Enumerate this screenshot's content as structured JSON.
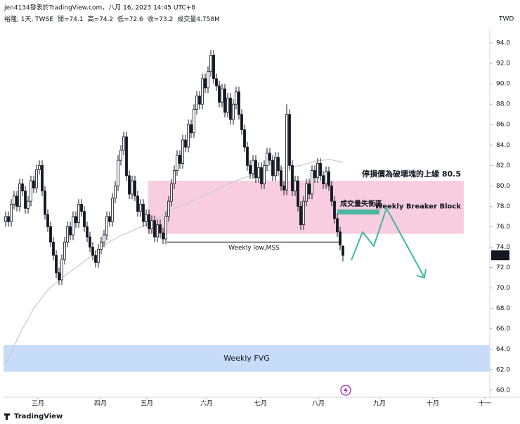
{
  "header": {
    "credit": "jen4134發表於TradingView.com，八月 16, 2023 14:45 UTC+8",
    "symbol": "裕隆, 1天, TWSE",
    "ohlc_labels": [
      "開=",
      "高=",
      "低=",
      "收="
    ],
    "volume": "成交量4.758M",
    "currency": "TWD"
  },
  "footer": {
    "brand": "TradingView"
  },
  "chart_data": {
    "type": "candlestick",
    "up_color": "#ffffff",
    "down_color": "#131722",
    "edge_color": "#131722",
    "ylim": [
      59.3,
      95.45
    ],
    "xlim": [
      -0.75,
      172.25
    ],
    "yticks": [
      {
        "value": 60,
        "label": "60.0"
      },
      {
        "value": 62,
        "label": "62.0"
      },
      {
        "value": 64,
        "label": "64.0"
      },
      {
        "value": 66,
        "label": "66.0"
      },
      {
        "value": 68,
        "label": "68.0"
      },
      {
        "value": 70,
        "label": "70.0"
      },
      {
        "value": 72,
        "label": "72.0"
      },
      {
        "value": 74,
        "label": "74.0"
      },
      {
        "value": 76,
        "label": "76.0"
      },
      {
        "value": 78,
        "label": "78.0"
      },
      {
        "value": 80,
        "label": "80.0"
      },
      {
        "value": 82,
        "label": "82.0"
      },
      {
        "value": 84,
        "label": "84.0"
      },
      {
        "value": 86,
        "label": "86.0"
      },
      {
        "value": 88,
        "label": "88.0"
      },
      {
        "value": 90,
        "label": "90.0"
      },
      {
        "value": 92,
        "label": "92.0"
      },
      {
        "value": 94,
        "label": "94.0"
      }
    ],
    "xticks": [
      {
        "value": 11.5,
        "label": "三月"
      },
      {
        "value": 33.75,
        "label": "四月"
      },
      {
        "value": 50.25,
        "label": "五月"
      },
      {
        "value": 71.5,
        "label": "六月"
      },
      {
        "value": 90.75,
        "label": "七月"
      },
      {
        "value": 111.25,
        "label": "八月"
      },
      {
        "value": 133,
        "label": "九月"
      },
      {
        "value": 152,
        "label": "十月"
      },
      {
        "value": 170.5,
        "label": "十一"
      }
    ],
    "ohlc": [
      [
        76.5,
        77.5,
        76.0,
        77.0
      ],
      [
        77.0,
        77.5,
        76.0,
        76.5
      ],
      [
        76.5,
        78.7,
        76.0,
        78.2
      ],
      [
        78.2,
        79.5,
        77.7,
        79.0
      ],
      [
        79.0,
        79.5,
        77.5,
        78.0
      ],
      [
        78.0,
        80.7,
        77.5,
        80.2
      ],
      [
        80.2,
        80.7,
        79.0,
        79.5
      ],
      [
        79.5,
        80.0,
        77.3,
        77.8
      ],
      [
        77.8,
        79.0,
        77.3,
        78.5
      ],
      [
        78.5,
        81.0,
        78.0,
        80.5
      ],
      [
        80.5,
        81.0,
        79.3,
        79.8
      ],
      [
        79.8,
        82.1,
        79.3,
        81.6
      ],
      [
        81.6,
        82.5,
        81.1,
        82.0
      ],
      [
        82.0,
        82.5,
        79.0,
        79.5
      ],
      [
        79.5,
        80.0,
        76.7,
        77.2
      ],
      [
        77.2,
        77.7,
        75.5,
        76.0
      ],
      [
        76.0,
        76.5,
        74.0,
        74.5
      ],
      [
        74.5,
        75.0,
        72.7,
        73.2
      ],
      [
        73.2,
        73.7,
        71.0,
        71.5
      ],
      [
        71.5,
        72.0,
        70.3,
        70.8
      ],
      [
        70.8,
        73.3,
        70.3,
        72.8
      ],
      [
        72.8,
        75.0,
        72.3,
        74.5
      ],
      [
        74.5,
        76.5,
        74.0,
        76.0
      ],
      [
        76.0,
        76.5,
        74.7,
        75.2
      ],
      [
        75.2,
        77.5,
        74.7,
        77.0
      ],
      [
        77.0,
        77.5,
        75.9,
        76.4
      ],
      [
        76.4,
        78.7,
        75.9,
        78.2
      ],
      [
        78.2,
        78.7,
        77.0,
        77.5
      ],
      [
        77.5,
        78.0,
        75.5,
        76.0
      ],
      [
        76.0,
        76.5,
        74.5,
        75.0
      ],
      [
        75.0,
        75.5,
        73.5,
        74.0
      ],
      [
        74.0,
        74.5,
        72.7,
        73.2
      ],
      [
        73.2,
        73.7,
        72.0,
        72.5
      ],
      [
        72.5,
        74.3,
        72.0,
        73.8
      ],
      [
        73.8,
        75.0,
        73.3,
        74.5
      ],
      [
        74.5,
        75.7,
        74.0,
        75.2
      ],
      [
        75.2,
        77.5,
        74.7,
        77.0
      ],
      [
        77.0,
        77.5,
        76.0,
        76.5
      ],
      [
        76.5,
        79.3,
        76.0,
        78.8
      ],
      [
        78.8,
        80.5,
        78.3,
        80.0
      ],
      [
        80.0,
        83.0,
        79.5,
        82.5
      ],
      [
        82.5,
        84.0,
        82.0,
        83.5
      ],
      [
        83.5,
        85.3,
        83.0,
        84.8
      ],
      [
        84.8,
        85.3,
        80.5,
        81.0
      ],
      [
        81.0,
        81.5,
        78.7,
        79.2
      ],
      [
        79.2,
        81.0,
        78.7,
        80.5
      ],
      [
        80.5,
        81.0,
        78.5,
        79.0
      ],
      [
        79.0,
        79.5,
        77.0,
        77.5
      ],
      [
        77.5,
        78.7,
        77.0,
        78.2
      ],
      [
        78.2,
        78.7,
        76.0,
        76.5
      ],
      [
        76.5,
        77.7,
        76.0,
        77.2
      ],
      [
        77.2,
        77.7,
        75.3,
        75.8
      ],
      [
        75.8,
        77.1,
        75.3,
        76.6
      ],
      [
        76.6,
        77.1,
        74.5,
        75.0
      ],
      [
        75.0,
        76.7,
        74.5,
        76.2
      ],
      [
        76.2,
        76.7,
        74.9,
        75.4
      ],
      [
        75.4,
        75.9,
        74.3,
        74.8
      ],
      [
        74.8,
        77.5,
        74.3,
        77.0
      ],
      [
        77.0,
        79.0,
        76.5,
        78.5
      ],
      [
        78.5,
        80.7,
        78.0,
        80.2
      ],
      [
        80.2,
        82.0,
        79.7,
        81.5
      ],
      [
        81.5,
        83.5,
        81.0,
        83.0
      ],
      [
        83.0,
        83.5,
        81.7,
        82.2
      ],
      [
        82.2,
        85.0,
        81.7,
        84.5
      ],
      [
        84.5,
        85.0,
        83.3,
        83.8
      ],
      [
        83.8,
        86.5,
        83.3,
        86.0
      ],
      [
        86.0,
        86.5,
        84.7,
        85.2
      ],
      [
        85.2,
        88.0,
        84.7,
        87.5
      ],
      [
        87.5,
        89.3,
        87.0,
        88.8
      ],
      [
        88.8,
        89.3,
        87.5,
        88.0
      ],
      [
        88.0,
        91.0,
        87.5,
        90.5
      ],
      [
        90.5,
        91.0,
        89.1,
        89.6
      ],
      [
        89.6,
        91.7,
        89.1,
        91.2
      ],
      [
        91.2,
        93.3,
        90.7,
        92.8
      ],
      [
        92.8,
        93.3,
        90.0,
        90.5
      ],
      [
        90.5,
        91.0,
        89.3,
        89.8
      ],
      [
        89.8,
        90.3,
        87.7,
        88.2
      ],
      [
        88.2,
        90.0,
        87.7,
        89.5
      ],
      [
        89.5,
        90.0,
        86.7,
        87.2
      ],
      [
        87.2,
        89.1,
        86.7,
        88.6
      ],
      [
        88.6,
        89.1,
        86.0,
        86.5
      ],
      [
        86.5,
        88.5,
        86.0,
        88.0
      ],
      [
        88.0,
        89.7,
        87.5,
        89.2
      ],
      [
        89.2,
        89.7,
        86.5,
        87.0
      ],
      [
        87.0,
        87.5,
        85.0,
        85.5
      ],
      [
        85.5,
        86.0,
        83.3,
        83.8
      ],
      [
        83.8,
        84.3,
        81.5,
        82.0
      ],
      [
        82.0,
        82.5,
        80.7,
        81.2
      ],
      [
        81.2,
        83.0,
        80.7,
        82.5
      ],
      [
        82.5,
        83.0,
        80.3,
        80.8
      ],
      [
        80.8,
        82.3,
        80.3,
        81.8
      ],
      [
        81.8,
        82.3,
        79.7,
        80.2
      ],
      [
        80.2,
        82.5,
        79.7,
        82.0
      ],
      [
        82.0,
        83.7,
        81.5,
        83.2
      ],
      [
        83.2,
        83.7,
        82.0,
        82.5
      ],
      [
        82.5,
        83.0,
        80.5,
        81.0
      ],
      [
        81.0,
        83.3,
        80.5,
        82.8
      ],
      [
        82.8,
        83.3,
        81.0,
        81.5
      ],
      [
        81.5,
        82.0,
        79.5,
        80.0
      ],
      [
        80.0,
        80.5,
        79.1,
        79.6
      ],
      [
        79.6,
        88.0,
        79.1,
        87.0
      ],
      [
        87.0,
        87.5,
        81.5,
        82.0
      ],
      [
        82.0,
        82.5,
        79.0,
        79.5
      ],
      [
        79.5,
        81.0,
        79.0,
        80.5
      ],
      [
        80.5,
        81.0,
        77.5,
        78.0
      ],
      [
        78.0,
        78.5,
        75.7,
        76.2
      ],
      [
        76.2,
        79.0,
        75.7,
        78.5
      ],
      [
        78.5,
        80.7,
        78.0,
        80.2
      ],
      [
        80.2,
        80.7,
        78.7,
        79.2
      ],
      [
        79.2,
        82.0,
        78.7,
        81.5
      ],
      [
        81.5,
        82.0,
        80.3,
        80.8
      ],
      [
        80.8,
        82.7,
        80.3,
        82.2
      ],
      [
        82.2,
        82.7,
        80.5,
        81.0
      ],
      [
        81.0,
        81.5,
        79.7,
        80.2
      ],
      [
        80.2,
        81.9,
        79.7,
        81.4
      ],
      [
        81.4,
        81.9,
        79.5,
        80.0
      ],
      [
        80.0,
        80.5,
        78.0,
        78.5
      ],
      [
        78.5,
        79.0,
        76.3,
        76.8
      ],
      [
        76.8,
        77.3,
        75.0,
        75.5
      ],
      [
        75.5,
        76.0,
        73.7,
        74.2
      ],
      [
        74.1,
        74.2,
        72.6,
        73.2
      ]
    ],
    "ma": {
      "color": "#c9c9c9",
      "x": [
        0,
        5,
        10,
        15,
        20,
        25,
        30,
        35,
        40,
        45,
        50,
        55,
        60,
        65,
        70,
        75,
        80,
        85,
        90,
        95,
        100,
        105,
        110,
        115,
        120
      ],
      "values": [
        62.5,
        65.5,
        68,
        69.8,
        71,
        72,
        73,
        74.2,
        75,
        75.6,
        76.2,
        77,
        77.8,
        78.3,
        79,
        79.6,
        80.3,
        80.8,
        81.3,
        81.6,
        81.8,
        82,
        82.4,
        82.6,
        82.3
      ]
    },
    "zones": [
      {
        "label": "Weekly FVG",
        "color": "#c7dcf8",
        "label_color": "#2a2e39",
        "top": 64.4,
        "bottom": 61.8,
        "x": [
          -0.75,
          172.25
        ]
      },
      {
        "label": "Weekly Breaker Block",
        "note": "停損價為破壞塊的上緣 80.5",
        "color": "#f9cde0",
        "label_color": "#9c27b0",
        "note_color": "#e91e63",
        "top": 80.5,
        "bottom": 75.3,
        "x": [
          50.75,
          163
        ]
      },
      {
        "label": "成交量失衡區",
        "color": "#4db6a0",
        "label_color": "#2a2e39",
        "top": 77.7,
        "bottom": 77.2,
        "x": [
          118,
          133
        ]
      }
    ],
    "level": {
      "label": "Weekly low,MSS",
      "value": 74.5,
      "x": [
        57.5,
        119.25
      ],
      "color": "#131722"
    },
    "last_label_color": "#131722"
  }
}
